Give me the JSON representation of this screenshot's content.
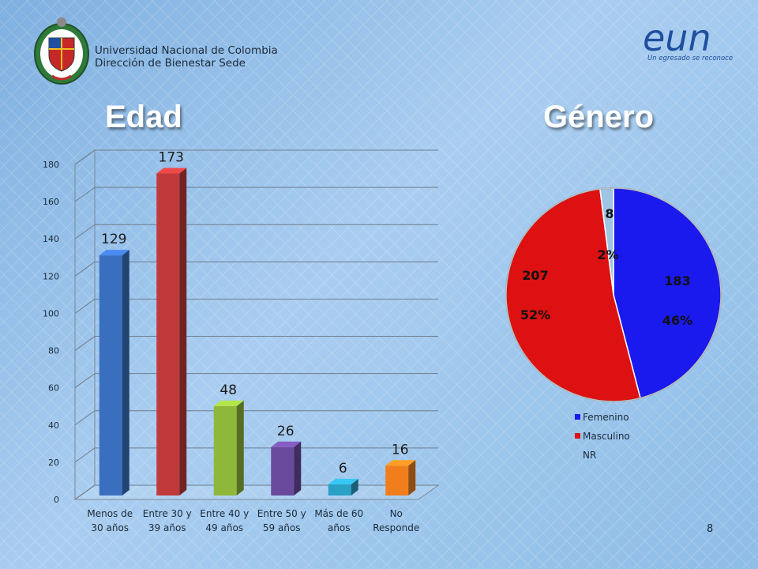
{
  "header": {
    "university_line1": "Universidad Nacional de Colombia",
    "university_line2": "Dirección de Bienestar Sede",
    "eun_logo_text": "eun",
    "eun_tagline": "Un egresado se reconoce"
  },
  "page_number": "8",
  "chart_data": [
    {
      "type": "bar",
      "title": "Edad",
      "categories": [
        "Menos de 30 años",
        "Entre 30 y 39 años",
        "Entre 40 y 49 años",
        "Entre 50 y 59 años",
        "Más de 60 años",
        "No Responde"
      ],
      "category_lines": [
        [
          "Menos de",
          "30 años"
        ],
        [
          "Entre 30 y",
          "39 años"
        ],
        [
          "Entre 40 y",
          "49 años"
        ],
        [
          "Entre 50 y",
          "59 años"
        ],
        [
          "Más de 60",
          "años"
        ],
        [
          "No",
          "Responde"
        ]
      ],
      "values": [
        129,
        173,
        48,
        26,
        6,
        16
      ],
      "colors": [
        "#3a6fc0",
        "#c03a3a",
        "#8fb83a",
        "#6a4a9c",
        "#2aa0c4",
        "#f07e1c"
      ],
      "ylim": [
        0,
        180
      ],
      "yticks": [
        0,
        20,
        40,
        60,
        80,
        100,
        120,
        140,
        160,
        180
      ],
      "grid": true
    },
    {
      "type": "pie",
      "title": "Género",
      "labels": [
        "Femenino",
        "Masculino",
        "NR"
      ],
      "values": [
        183,
        207,
        8
      ],
      "percent_labels": [
        "46%",
        "52%",
        "2%"
      ],
      "colors": [
        "#1a1aee",
        "#dd1111",
        "#9ec4e6"
      ],
      "legend": "bottom-right"
    }
  ]
}
